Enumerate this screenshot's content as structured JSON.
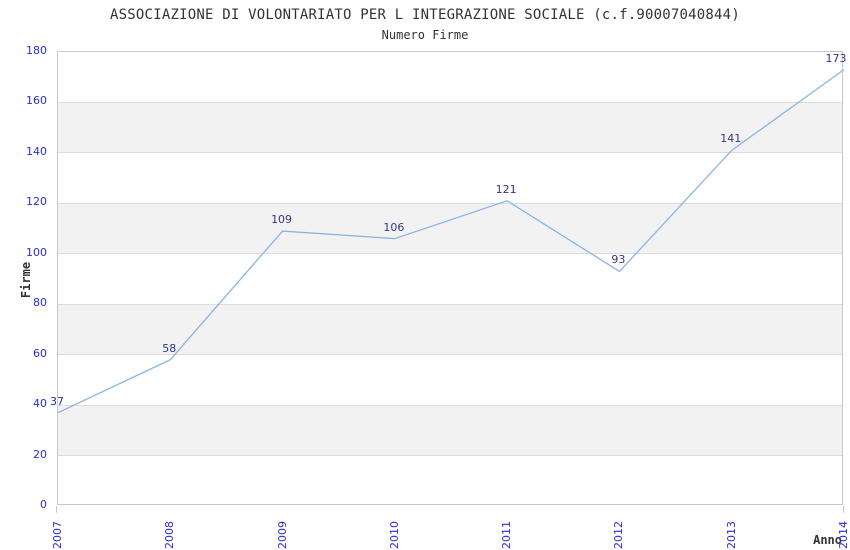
{
  "chart_data": {
    "type": "line",
    "title": "ASSOCIAZIONE DI VOLONTARIATO PER L INTEGRAZIONE SOCIALE (c.f.90007040844)",
    "subtitle": "Numero Firme",
    "xlabel": "Anno",
    "ylabel": "Firme",
    "categories": [
      "2007",
      "2008",
      "2009",
      "2010",
      "2011",
      "2012",
      "2013",
      "2014"
    ],
    "values": [
      37,
      58,
      109,
      106,
      121,
      93,
      141,
      173
    ],
    "ylim": [
      0,
      180
    ],
    "ytick_step": 20,
    "grid": true,
    "legend_position": "none",
    "point_labels": true,
    "colors": {
      "line": "#8AB4E2",
      "tick_label": "#2D2DD2",
      "point_label": "#333388",
      "band": "#F2F2F2",
      "gridline": "#DCDCDC",
      "border": "#C8C8C8",
      "background": "#FFFFFF"
    }
  }
}
